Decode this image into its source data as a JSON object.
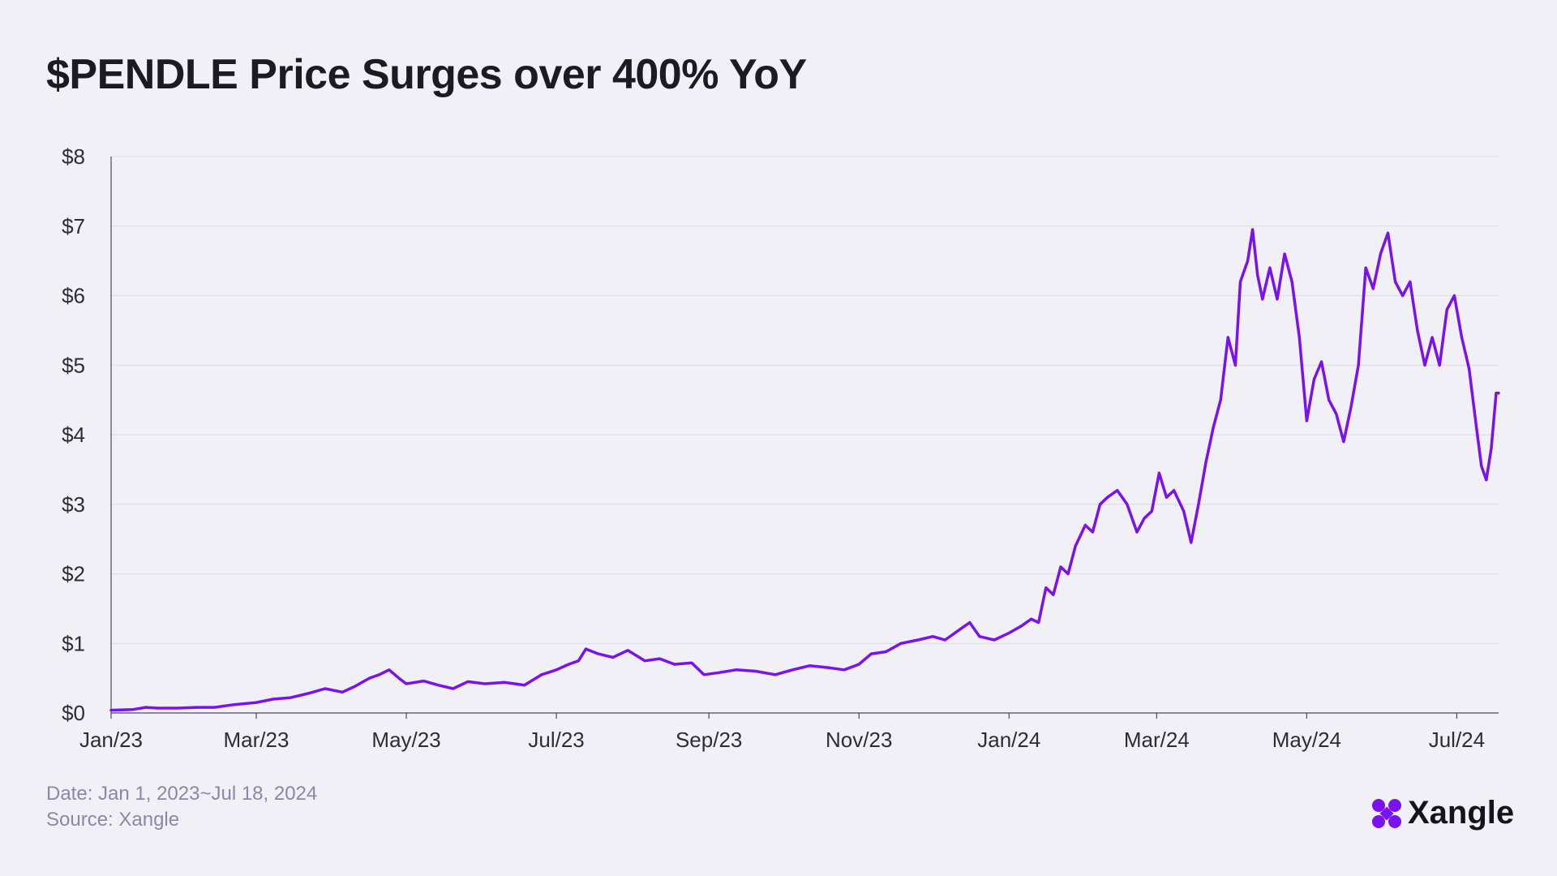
{
  "title": "$PENDLE Price Surges over 400% YoY",
  "footer": {
    "date": "Date: Jan 1, 2023~Jul 18, 2024",
    "source": "Source: Xangle"
  },
  "brand": {
    "name": "Xangle",
    "icon": "xangle-logo-icon",
    "color": "#7a12f0"
  },
  "colors": {
    "line": "#7a12f0",
    "grid": "#dcdbe6",
    "axis": "#4b4866"
  },
  "chart_data": {
    "type": "line",
    "title": "$PENDLE Price Surges over 400% YoY",
    "xlabel": "",
    "ylabel": "",
    "ylim": [
      0,
      8
    ],
    "xlim": [
      "2023-01-01",
      "2024-07-18"
    ],
    "grid": true,
    "y_ticks": [
      "$0",
      "$1",
      "$2",
      "$3",
      "$4",
      "$5",
      "$6",
      "$7",
      "$8"
    ],
    "x_ticks": [
      {
        "label": "Jan/23",
        "date": "2023-01-01"
      },
      {
        "label": "Mar/23",
        "date": "2023-03-01"
      },
      {
        "label": "May/23",
        "date": "2023-05-01"
      },
      {
        "label": "Jul/23",
        "date": "2023-07-01"
      },
      {
        "label": "Sep/23",
        "date": "2023-09-01"
      },
      {
        "label": "Nov/23",
        "date": "2023-11-01"
      },
      {
        "label": "Jan/24",
        "date": "2024-01-01"
      },
      {
        "label": "Mar/24",
        "date": "2024-03-01"
      },
      {
        "label": "May/24",
        "date": "2024-05-01"
      },
      {
        "label": "Jul/24",
        "date": "2024-07-01"
      }
    ],
    "series": [
      {
        "points": [
          [
            "2023-01-01",
            0.04
          ],
          [
            "2023-01-10",
            0.05
          ],
          [
            "2023-01-15",
            0.08
          ],
          [
            "2023-01-20",
            0.07
          ],
          [
            "2023-01-28",
            0.07
          ],
          [
            "2023-02-05",
            0.08
          ],
          [
            "2023-02-12",
            0.08
          ],
          [
            "2023-02-20",
            0.12
          ],
          [
            "2023-03-01",
            0.15
          ],
          [
            "2023-03-08",
            0.2
          ],
          [
            "2023-03-15",
            0.22
          ],
          [
            "2023-03-22",
            0.28
          ],
          [
            "2023-03-29",
            0.35
          ],
          [
            "2023-04-05",
            0.3
          ],
          [
            "2023-04-10",
            0.38
          ],
          [
            "2023-04-16",
            0.5
          ],
          [
            "2023-04-20",
            0.55
          ],
          [
            "2023-04-24",
            0.62
          ],
          [
            "2023-04-28",
            0.5
          ],
          [
            "2023-05-01",
            0.42
          ],
          [
            "2023-05-08",
            0.46
          ],
          [
            "2023-05-14",
            0.4
          ],
          [
            "2023-05-20",
            0.35
          ],
          [
            "2023-05-26",
            0.45
          ],
          [
            "2023-06-02",
            0.42
          ],
          [
            "2023-06-10",
            0.44
          ],
          [
            "2023-06-18",
            0.4
          ],
          [
            "2023-06-25",
            0.55
          ],
          [
            "2023-07-01",
            0.62
          ],
          [
            "2023-07-06",
            0.7
          ],
          [
            "2023-07-10",
            0.75
          ],
          [
            "2023-07-13",
            0.92
          ],
          [
            "2023-07-18",
            0.85
          ],
          [
            "2023-07-24",
            0.8
          ],
          [
            "2023-07-30",
            0.9
          ],
          [
            "2023-08-06",
            0.75
          ],
          [
            "2023-08-12",
            0.78
          ],
          [
            "2023-08-18",
            0.7
          ],
          [
            "2023-08-25",
            0.72
          ],
          [
            "2023-08-30",
            0.55
          ],
          [
            "2023-09-05",
            0.58
          ],
          [
            "2023-09-12",
            0.62
          ],
          [
            "2023-09-20",
            0.6
          ],
          [
            "2023-09-28",
            0.55
          ],
          [
            "2023-10-05",
            0.62
          ],
          [
            "2023-10-12",
            0.68
          ],
          [
            "2023-10-20",
            0.65
          ],
          [
            "2023-10-26",
            0.62
          ],
          [
            "2023-11-01",
            0.7
          ],
          [
            "2023-11-06",
            0.85
          ],
          [
            "2023-11-12",
            0.88
          ],
          [
            "2023-11-18",
            1.0
          ],
          [
            "2023-11-25",
            1.05
          ],
          [
            "2023-12-01",
            1.1
          ],
          [
            "2023-12-06",
            1.05
          ],
          [
            "2023-12-12",
            1.2
          ],
          [
            "2023-12-16",
            1.3
          ],
          [
            "2023-12-20",
            1.1
          ],
          [
            "2023-12-26",
            1.05
          ],
          [
            "2024-01-01",
            1.15
          ],
          [
            "2024-01-06",
            1.25
          ],
          [
            "2024-01-10",
            1.35
          ],
          [
            "2024-01-13",
            1.3
          ],
          [
            "2024-01-16",
            1.8
          ],
          [
            "2024-01-19",
            1.7
          ],
          [
            "2024-01-22",
            2.1
          ],
          [
            "2024-01-25",
            2.0
          ],
          [
            "2024-01-28",
            2.4
          ],
          [
            "2024-02-01",
            2.7
          ],
          [
            "2024-02-04",
            2.6
          ],
          [
            "2024-02-07",
            3.0
          ],
          [
            "2024-02-10",
            3.1
          ],
          [
            "2024-02-14",
            3.2
          ],
          [
            "2024-02-18",
            3.0
          ],
          [
            "2024-02-22",
            2.6
          ],
          [
            "2024-02-25",
            2.8
          ],
          [
            "2024-02-28",
            2.9
          ],
          [
            "2024-03-02",
            3.45
          ],
          [
            "2024-03-05",
            3.1
          ],
          [
            "2024-03-08",
            3.2
          ],
          [
            "2024-03-12",
            2.9
          ],
          [
            "2024-03-15",
            2.45
          ],
          [
            "2024-03-18",
            3.0
          ],
          [
            "2024-03-21",
            3.6
          ],
          [
            "2024-03-24",
            4.1
          ],
          [
            "2024-03-27",
            4.5
          ],
          [
            "2024-03-30",
            5.4
          ],
          [
            "2024-04-02",
            5.0
          ],
          [
            "2024-04-04",
            6.2
          ],
          [
            "2024-04-07",
            6.5
          ],
          [
            "2024-04-09",
            6.95
          ],
          [
            "2024-04-11",
            6.3
          ],
          [
            "2024-04-13",
            5.95
          ],
          [
            "2024-04-16",
            6.4
          ],
          [
            "2024-04-19",
            5.95
          ],
          [
            "2024-04-22",
            6.6
          ],
          [
            "2024-04-25",
            6.2
          ],
          [
            "2024-04-28",
            5.4
          ],
          [
            "2024-05-01",
            4.2
          ],
          [
            "2024-05-04",
            4.8
          ],
          [
            "2024-05-07",
            5.05
          ],
          [
            "2024-05-10",
            4.5
          ],
          [
            "2024-05-13",
            4.3
          ],
          [
            "2024-05-16",
            3.9
          ],
          [
            "2024-05-19",
            4.4
          ],
          [
            "2024-05-22",
            5.0
          ],
          [
            "2024-05-25",
            6.4
          ],
          [
            "2024-05-28",
            6.1
          ],
          [
            "2024-05-31",
            6.6
          ],
          [
            "2024-06-03",
            6.9
          ],
          [
            "2024-06-06",
            6.2
          ],
          [
            "2024-06-09",
            6.0
          ],
          [
            "2024-06-12",
            6.2
          ],
          [
            "2024-06-15",
            5.5
          ],
          [
            "2024-06-18",
            5.0
          ],
          [
            "2024-06-21",
            5.4
          ],
          [
            "2024-06-24",
            5.0
          ],
          [
            "2024-06-27",
            5.8
          ],
          [
            "2024-06-30",
            6.0
          ],
          [
            "2024-07-03",
            5.4
          ],
          [
            "2024-07-06",
            4.95
          ],
          [
            "2024-07-09",
            4.1
          ],
          [
            "2024-07-11",
            3.55
          ],
          [
            "2024-07-13",
            3.35
          ],
          [
            "2024-07-15",
            3.8
          ],
          [
            "2024-07-17",
            4.6
          ],
          [
            "2024-07-18",
            4.6
          ]
        ]
      }
    ]
  }
}
